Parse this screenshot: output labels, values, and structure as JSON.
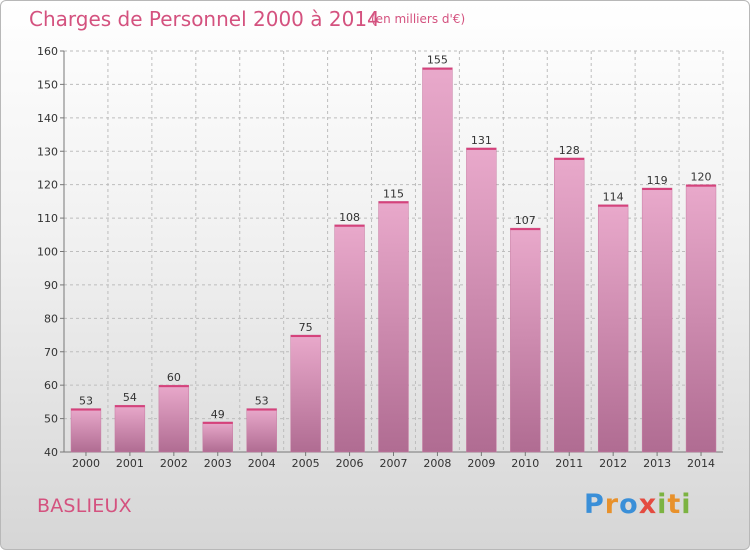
{
  "header": {
    "title": "Charges de Personnel 2000 à 2014",
    "subtitle": "(en milliers d'€)"
  },
  "footer": {
    "commune": "BASLIEUX",
    "brand": "Proxiti",
    "brand_letters": [
      {
        "ch": "P",
        "color": "#3a8fd8"
      },
      {
        "ch": "r",
        "color": "#e8912b"
      },
      {
        "ch": "o",
        "color": "#3a8fd8"
      },
      {
        "ch": "x",
        "color": "#e44b40"
      },
      {
        "ch": "i",
        "color": "#7cb342"
      },
      {
        "ch": "t",
        "color": "#e8912b"
      },
      {
        "ch": "i",
        "color": "#7cb342"
      }
    ]
  },
  "colors": {
    "accent": "#d4527f",
    "bar_light": "#e9a9cb",
    "bar_dark": "#b06c92",
    "grid": "#bdbdbd"
  },
  "chart_data": {
    "type": "bar",
    "title": "Charges de Personnel 2000 à 2014",
    "subtitle": "(en milliers d'€)",
    "xlabel": "",
    "ylabel": "",
    "categories": [
      "2000",
      "2001",
      "2002",
      "2003",
      "2004",
      "2005",
      "2006",
      "2007",
      "2008",
      "2009",
      "2010",
      "2011",
      "2012",
      "2013",
      "2014"
    ],
    "values": [
      53,
      54,
      60,
      49,
      53,
      75,
      108,
      115,
      155,
      131,
      107,
      128,
      114,
      119,
      120
    ],
    "ylim": [
      40,
      160
    ],
    "yticks": [
      40,
      50,
      60,
      70,
      80,
      90,
      100,
      110,
      120,
      130,
      140,
      150,
      160
    ],
    "grid": true,
    "legend": "none"
  }
}
